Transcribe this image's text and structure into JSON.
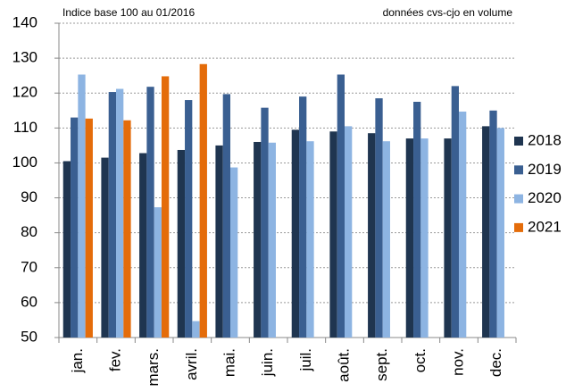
{
  "chart_data": {
    "type": "bar",
    "annotations": [
      "Indice base 100 au 01/2016",
      "données cvs-cjo en volume"
    ],
    "categories": [
      "jan.",
      "fev.",
      "mars.",
      "avril.",
      "mai.",
      "juin.",
      "juil.",
      "août.",
      "sept.",
      "oct.",
      "nov.",
      "dec."
    ],
    "series": [
      {
        "name": "2018",
        "color": "#1f3550",
        "values": [
          100.5,
          101.5,
          102.8,
          103.7,
          105,
          106,
          109.5,
          109,
          108.5,
          107,
          107,
          110.5
        ]
      },
      {
        "name": "2019",
        "color": "#3a5f91",
        "values": [
          113,
          120.3,
          121.8,
          118,
          119.7,
          115.8,
          119,
          125.3,
          118.5,
          117.5,
          122,
          115
        ]
      },
      {
        "name": "2020",
        "color": "#8db4e2",
        "values": [
          125.3,
          121.2,
          87.3,
          54.7,
          98.7,
          105.8,
          106.2,
          110.5,
          106.2,
          107,
          114.7,
          110
        ]
      },
      {
        "name": "2021",
        "color": "#e46c0a",
        "values": [
          112.7,
          112.2,
          124.8,
          128.3,
          null,
          null,
          null,
          null,
          null,
          null,
          null,
          null
        ]
      }
    ],
    "ylim": [
      50,
      140
    ],
    "yticks": [
      50,
      60,
      70,
      80,
      90,
      100,
      110,
      120,
      130,
      140
    ],
    "grid": true,
    "legend": "right"
  }
}
